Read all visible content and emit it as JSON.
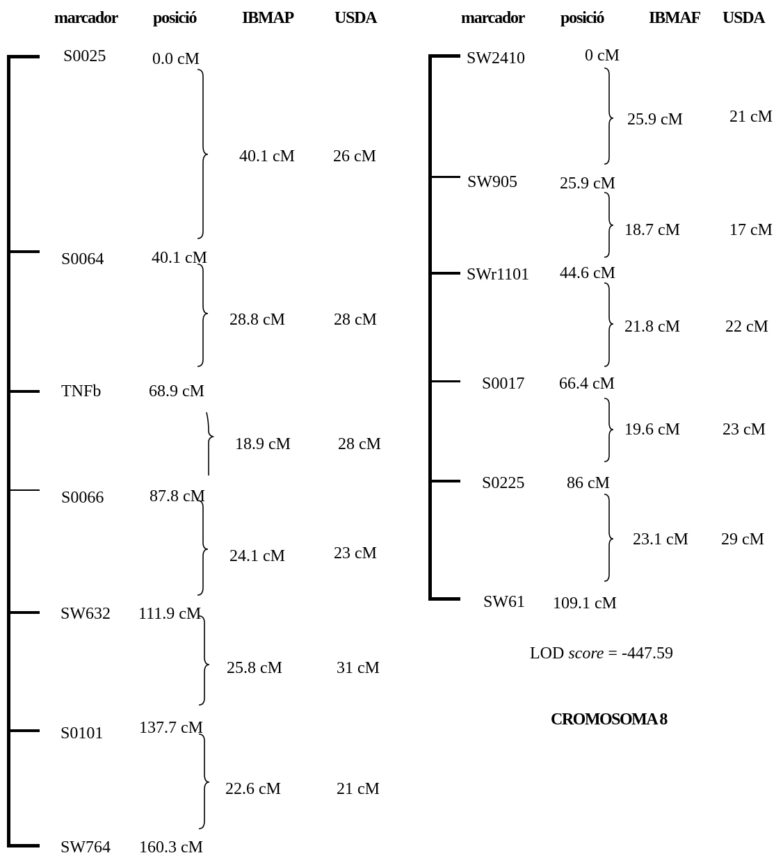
{
  "headers": {
    "left": [
      "marcador",
      "posició",
      "IBMAP",
      "USDA"
    ],
    "right": [
      "marcador",
      "posició",
      "IBMAF",
      "USDA"
    ]
  },
  "left_markers": [
    {
      "name": "S0025",
      "pos": "0.0 cM"
    },
    {
      "name": "S0064",
      "pos": "40.1 cM"
    },
    {
      "name": "TNFb",
      "pos": "68.9 cM"
    },
    {
      "name": "S0066",
      "pos": "87.8 cM"
    },
    {
      "name": "SW632",
      "pos": "111.9 cM"
    },
    {
      "name": "S0101",
      "pos": "137.7 cM"
    },
    {
      "name": "SW764",
      "pos": "160.3 cM"
    }
  ],
  "left_intervals": [
    {
      "ibmap": "40.1 cM",
      "usda": "26 cM"
    },
    {
      "ibmap": "28.8 cM",
      "usda": "28 cM"
    },
    {
      "ibmap": "18.9 cM",
      "usda": "28 cM"
    },
    {
      "ibmap": "24.1 cM",
      "usda": "23 cM"
    },
    {
      "ibmap": "25.8 cM",
      "usda": "31 cM"
    },
    {
      "ibmap": "22.6 cM",
      "usda": "21 cM"
    }
  ],
  "right_markers": [
    {
      "name": "SW2410",
      "pos": "0 cM"
    },
    {
      "name": "SW905",
      "pos": "25.9 cM"
    },
    {
      "name": "SWr1101",
      "pos": "44.6 cM"
    },
    {
      "name": "S0017",
      "pos": "66.4 cM"
    },
    {
      "name": "S0225",
      "pos": "86 cM"
    },
    {
      "name": "SW61",
      "pos": "109.1 cM"
    }
  ],
  "right_intervals": [
    {
      "ibmap": "25.9 cM",
      "usda": "21 cM"
    },
    {
      "ibmap": "18.7 cM",
      "usda": "17 cM"
    },
    {
      "ibmap": "21.8 cM",
      "usda": "22 cM"
    },
    {
      "ibmap": "19.6 cM",
      "usda": "23 cM"
    },
    {
      "ibmap": "23.1 cM",
      "usda": "29 cM"
    }
  ],
  "lod": {
    "prefix": "LOD ",
    "italic": "score",
    "suffix": " = -447.59"
  },
  "title": "CROMOSOMA 8"
}
